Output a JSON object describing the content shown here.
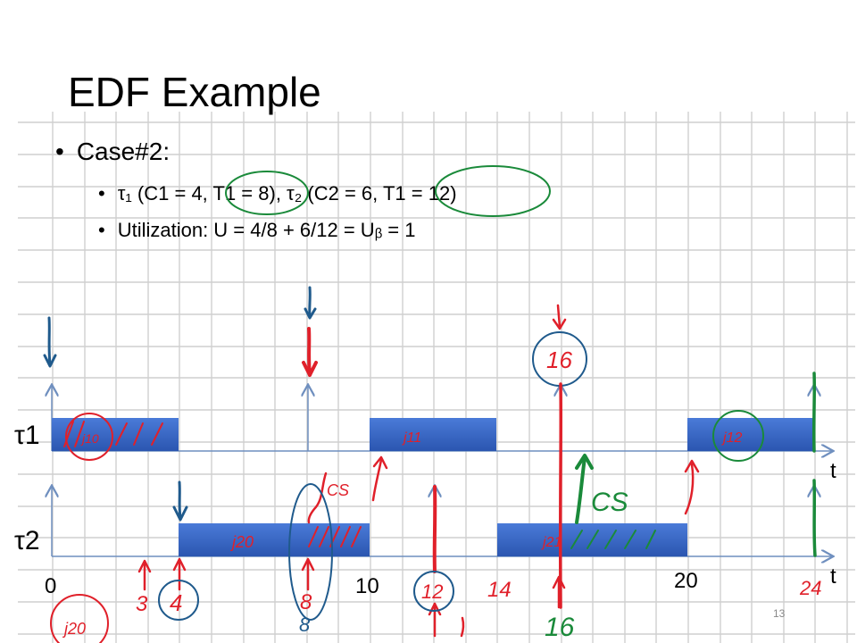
{
  "slide": {
    "title": "EDF Example",
    "bullet1": "Case#2:",
    "bullet2": "τ₁ (C1 = 4, T1 = 8), τ₂ (C2 = 6, T1 = 12)",
    "bullet3": "Utilization: U = 4/8 + 6/12 = Uᵦ = 1",
    "slide_number": "13"
  },
  "diagram": {
    "tau1_label": "τ1",
    "tau2_label": "τ2",
    "axis_label_t1": "t",
    "axis_label_t2": "t",
    "tick_0": "0",
    "tick_10": "10",
    "tick_20": "20",
    "colors": {
      "bar": "#3a65c4",
      "bar_dark": "#2b4fa0",
      "ink_red": "#e0202a",
      "ink_blue": "#1f5a8c",
      "ink_green": "#1a8a3a",
      "grid": "#c8c8c8",
      "axis": "#6f8fbf"
    }
  },
  "annotations": {
    "j10": "j10",
    "j11": "j11",
    "j12": "j12",
    "j20": "j20",
    "j21": "j21",
    "cs_red": "CS",
    "cs_green": "CS",
    "n16_top": "16",
    "n16_bottom": "16",
    "n3": "3",
    "n4": "4",
    "n8": "8",
    "n8b": "8",
    "n12": "12",
    "n14": "14",
    "n24": "24",
    "j20_bottom": "j20"
  }
}
